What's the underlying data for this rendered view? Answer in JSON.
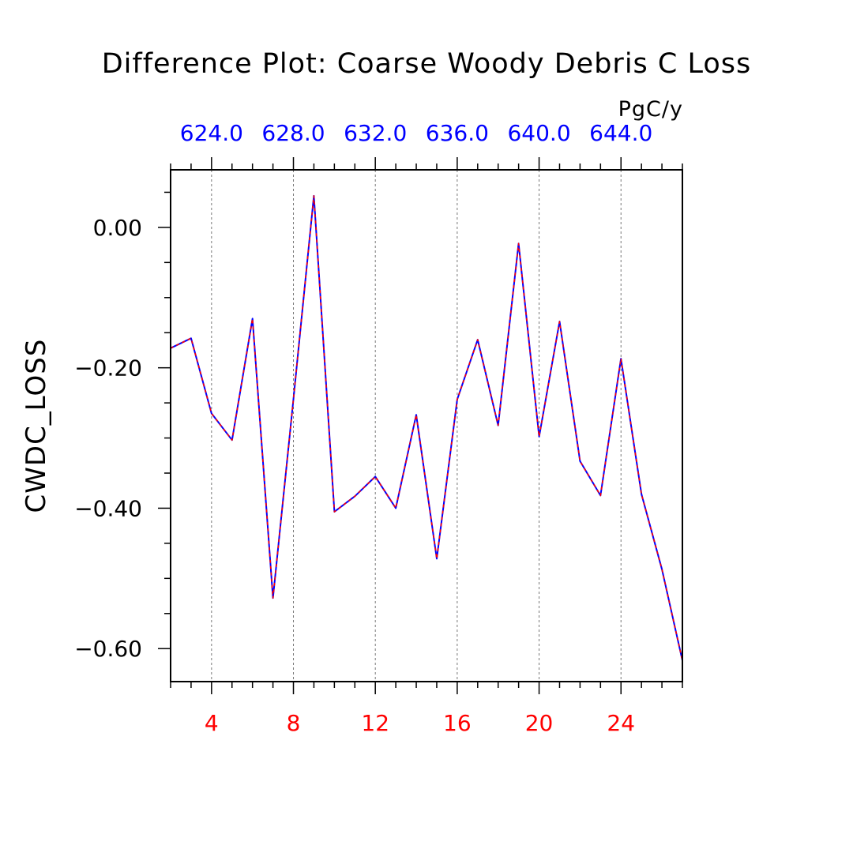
{
  "chart_data": {
    "type": "line",
    "title": "Difference Plot: Coarse Woody Debris C Loss",
    "ylabel": "CWDC_LOSS",
    "units": "PgC/y",
    "x": [
      2,
      3,
      4,
      5,
      6,
      7,
      8,
      9,
      10,
      11,
      12,
      13,
      14,
      15,
      16,
      17,
      18,
      19,
      20,
      21,
      22,
      23,
      24,
      25,
      26,
      27
    ],
    "xlim": [
      2,
      27
    ],
    "ylim": [
      -0.647,
      0.082
    ],
    "x_ticks": [
      {
        "value": 4,
        "label": "4"
      },
      {
        "value": 8,
        "label": "8"
      },
      {
        "value": 12,
        "label": "12"
      },
      {
        "value": 16,
        "label": "16"
      },
      {
        "value": 20,
        "label": "20"
      },
      {
        "value": 24,
        "label": "24"
      }
    ],
    "y_ticks": [
      {
        "value": 0.0,
        "label": "0.00"
      },
      {
        "value": -0.2,
        "label": "−0.20"
      },
      {
        "value": -0.4,
        "label": "−0.40"
      },
      {
        "value": -0.6,
        "label": "−0.60"
      }
    ],
    "top_ticks": [
      {
        "x": 4,
        "label": "624.0"
      },
      {
        "x": 8,
        "label": "628.0"
      },
      {
        "x": 12,
        "label": "632.0"
      },
      {
        "x": 16,
        "label": "636.0"
      },
      {
        "x": 20,
        "label": "640.0"
      },
      {
        "x": 24,
        "label": "644.0"
      }
    ],
    "grid": "vertical dashed at major x ticks",
    "series": [
      {
        "color": "#0000ff",
        "style": "solid",
        "values": [
          -0.172,
          -0.158,
          -0.265,
          -0.303,
          -0.13,
          -0.528,
          -0.245,
          0.045,
          -0.405,
          -0.383,
          -0.355,
          -0.4,
          -0.267,
          -0.472,
          -0.245,
          -0.16,
          -0.282,
          -0.023,
          -0.298,
          -0.134,
          -0.333,
          -0.382,
          -0.187,
          -0.38,
          -0.487,
          -0.617
        ]
      },
      {
        "color": "#ff0000",
        "style": "dashed",
        "values": [
          -0.172,
          -0.158,
          -0.265,
          -0.303,
          -0.13,
          -0.528,
          -0.245,
          0.045,
          -0.405,
          -0.383,
          -0.355,
          -0.4,
          -0.267,
          -0.472,
          -0.245,
          -0.16,
          -0.282,
          -0.023,
          -0.298,
          -0.134,
          -0.333,
          -0.382,
          -0.187,
          -0.38,
          -0.487,
          -0.617
        ]
      }
    ],
    "colors": {
      "bottom_tick_labels": "#ff0000",
      "top_tick_labels": "#0000ff",
      "text": "#000000"
    }
  }
}
